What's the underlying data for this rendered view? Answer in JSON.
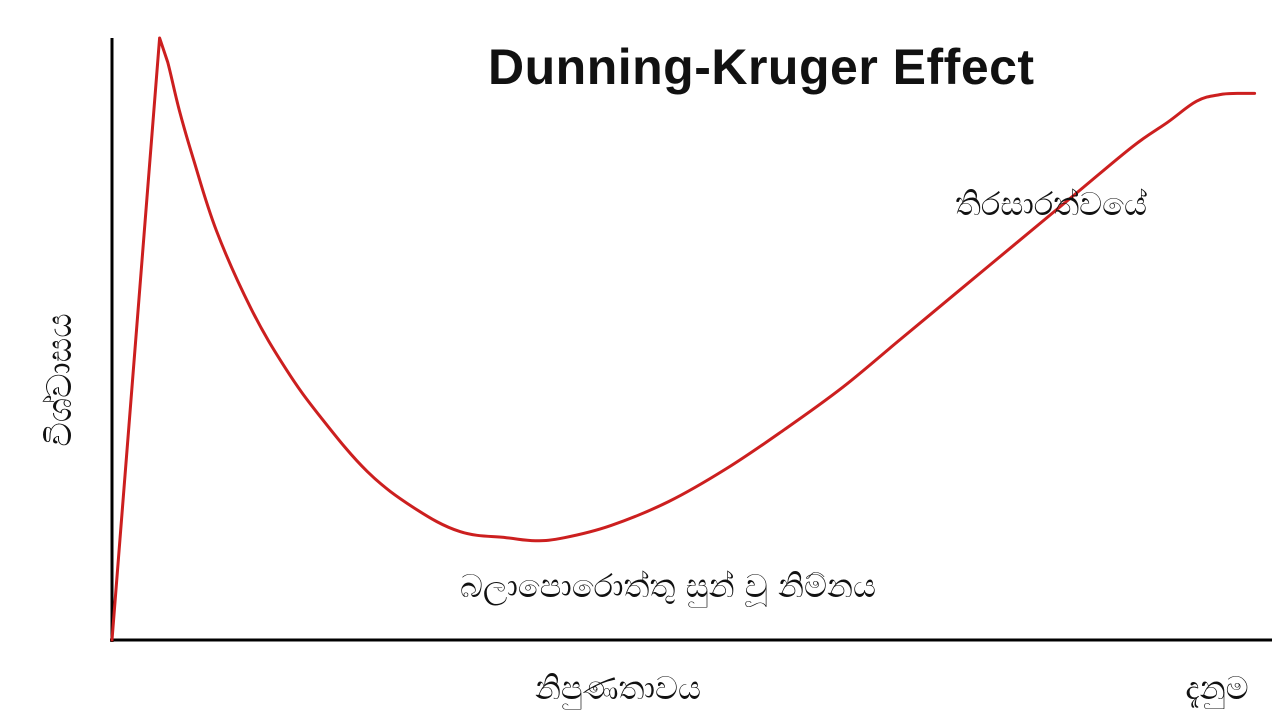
{
  "chart_data": {
    "type": "line",
    "title": "Dunning-Kruger Effect",
    "ylabel": "විශ්වාසය",
    "xlabel": "නිපුණතාවය",
    "x_axis_end_label": "දැනුම",
    "xlim": [
      0,
      100
    ],
    "ylim": [
      0,
      100
    ],
    "grid": false,
    "legend": "none",
    "axis_color": "#000000",
    "line_color": "#cc1f1f",
    "series": [
      {
        "x": [
          0,
          4.1,
          4.8,
          5.8,
          7,
          9,
          12,
          15,
          18,
          22,
          26,
          30,
          34,
          36.5,
          39,
          43,
          48,
          53,
          58,
          63,
          68,
          73,
          78,
          83,
          88,
          91,
          93.5,
          95.5,
          97,
          98.5
        ],
        "y": [
          0,
          100,
          96,
          88,
          80,
          68,
          55,
          45,
          37,
          28,
          22,
          18,
          17,
          16.5,
          17,
          19,
          23,
          28.5,
          35,
          42,
          50,
          58,
          66,
          74,
          82,
          86,
          89.5,
          90.6,
          90.8,
          90.8
        ]
      }
    ],
    "annotations": [
      {
        "text": "තිරසාරත්වයේ",
        "x": 81,
        "y": 88
      },
      {
        "text": "බලාපොරොත්තු සුන් වූ නිම්නය",
        "x": 48,
        "y": 9
      }
    ]
  }
}
